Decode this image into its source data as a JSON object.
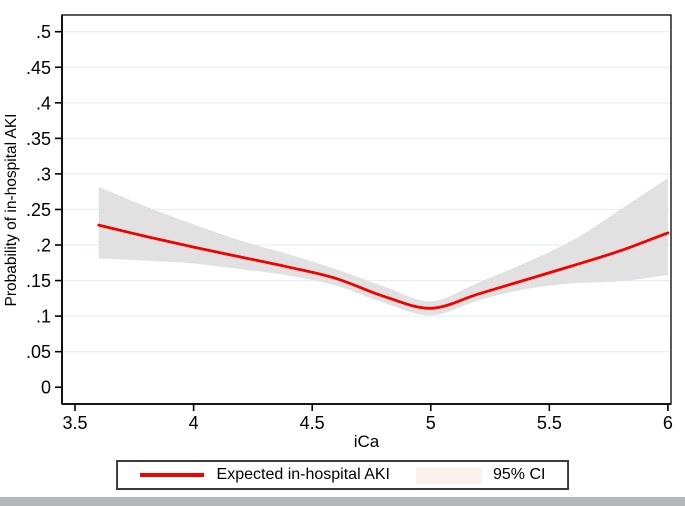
{
  "chart_data": {
    "type": "line",
    "title": "",
    "xlabel": "iCa",
    "ylabel": "Probability of in-hospital AKI",
    "xlim": [
      3.445,
      6.013
    ],
    "ylim": [
      -0.0236,
      0.5235
    ],
    "grid": "horizontal-only",
    "x_ticks": {
      "values": [
        3.5,
        4,
        4.5,
        5,
        5.5,
        6
      ],
      "labels": [
        "3.5",
        "4",
        "4.5",
        "5",
        "5.5",
        "6"
      ]
    },
    "y_ticks": {
      "values": [
        0,
        0.05,
        0.1,
        0.15,
        0.2,
        0.25,
        0.3,
        0.35,
        0.4,
        0.45,
        0.5
      ],
      "labels": [
        "0",
        ".05",
        ".1",
        ".15",
        ".2",
        ".25",
        ".3",
        ".35",
        ".4",
        ".45",
        ".5"
      ]
    },
    "series": [
      {
        "name": "Expected in-hospital AKI",
        "type": "line",
        "x": [
          3.6,
          3.8,
          4.0,
          4.2,
          4.4,
          4.6,
          4.8,
          5.0,
          5.2,
          5.4,
          5.6,
          5.8,
          6.0
        ],
        "y": [
          0.228,
          0.212,
          0.197,
          0.183,
          0.169,
          0.153,
          0.128,
          0.111,
          0.131,
          0.151,
          0.171,
          0.192,
          0.217
        ]
      },
      {
        "name": "95% CI",
        "type": "band",
        "x": [
          3.6,
          3.8,
          4.0,
          4.2,
          4.4,
          4.6,
          4.8,
          5.0,
          5.2,
          5.4,
          5.6,
          5.8,
          6.0
        ],
        "lower": [
          0.181,
          0.178,
          0.174,
          0.166,
          0.157,
          0.143,
          0.119,
          0.101,
          0.122,
          0.138,
          0.146,
          0.149,
          0.158
        ],
        "upper": [
          0.282,
          0.254,
          0.229,
          0.206,
          0.187,
          0.166,
          0.142,
          0.121,
          0.147,
          0.175,
          0.207,
          0.25,
          0.294
        ]
      }
    ],
    "legend": {
      "position": "bottom-center",
      "entries": [
        {
          "label": "Expected in-hospital AKI",
          "swatch": "line"
        },
        {
          "label": "95% CI",
          "swatch": "area"
        }
      ]
    },
    "colors": {
      "line": "#f40000",
      "ci_band": "#e1e1e1",
      "ci_legend_swatch": "#fcf1ec",
      "gridline": "#e4f0f4",
      "axis": "#000000",
      "legend_border": "#3b3b3b",
      "background": "#ffffff",
      "bottom_bar": "#b5b8ba"
    }
  }
}
